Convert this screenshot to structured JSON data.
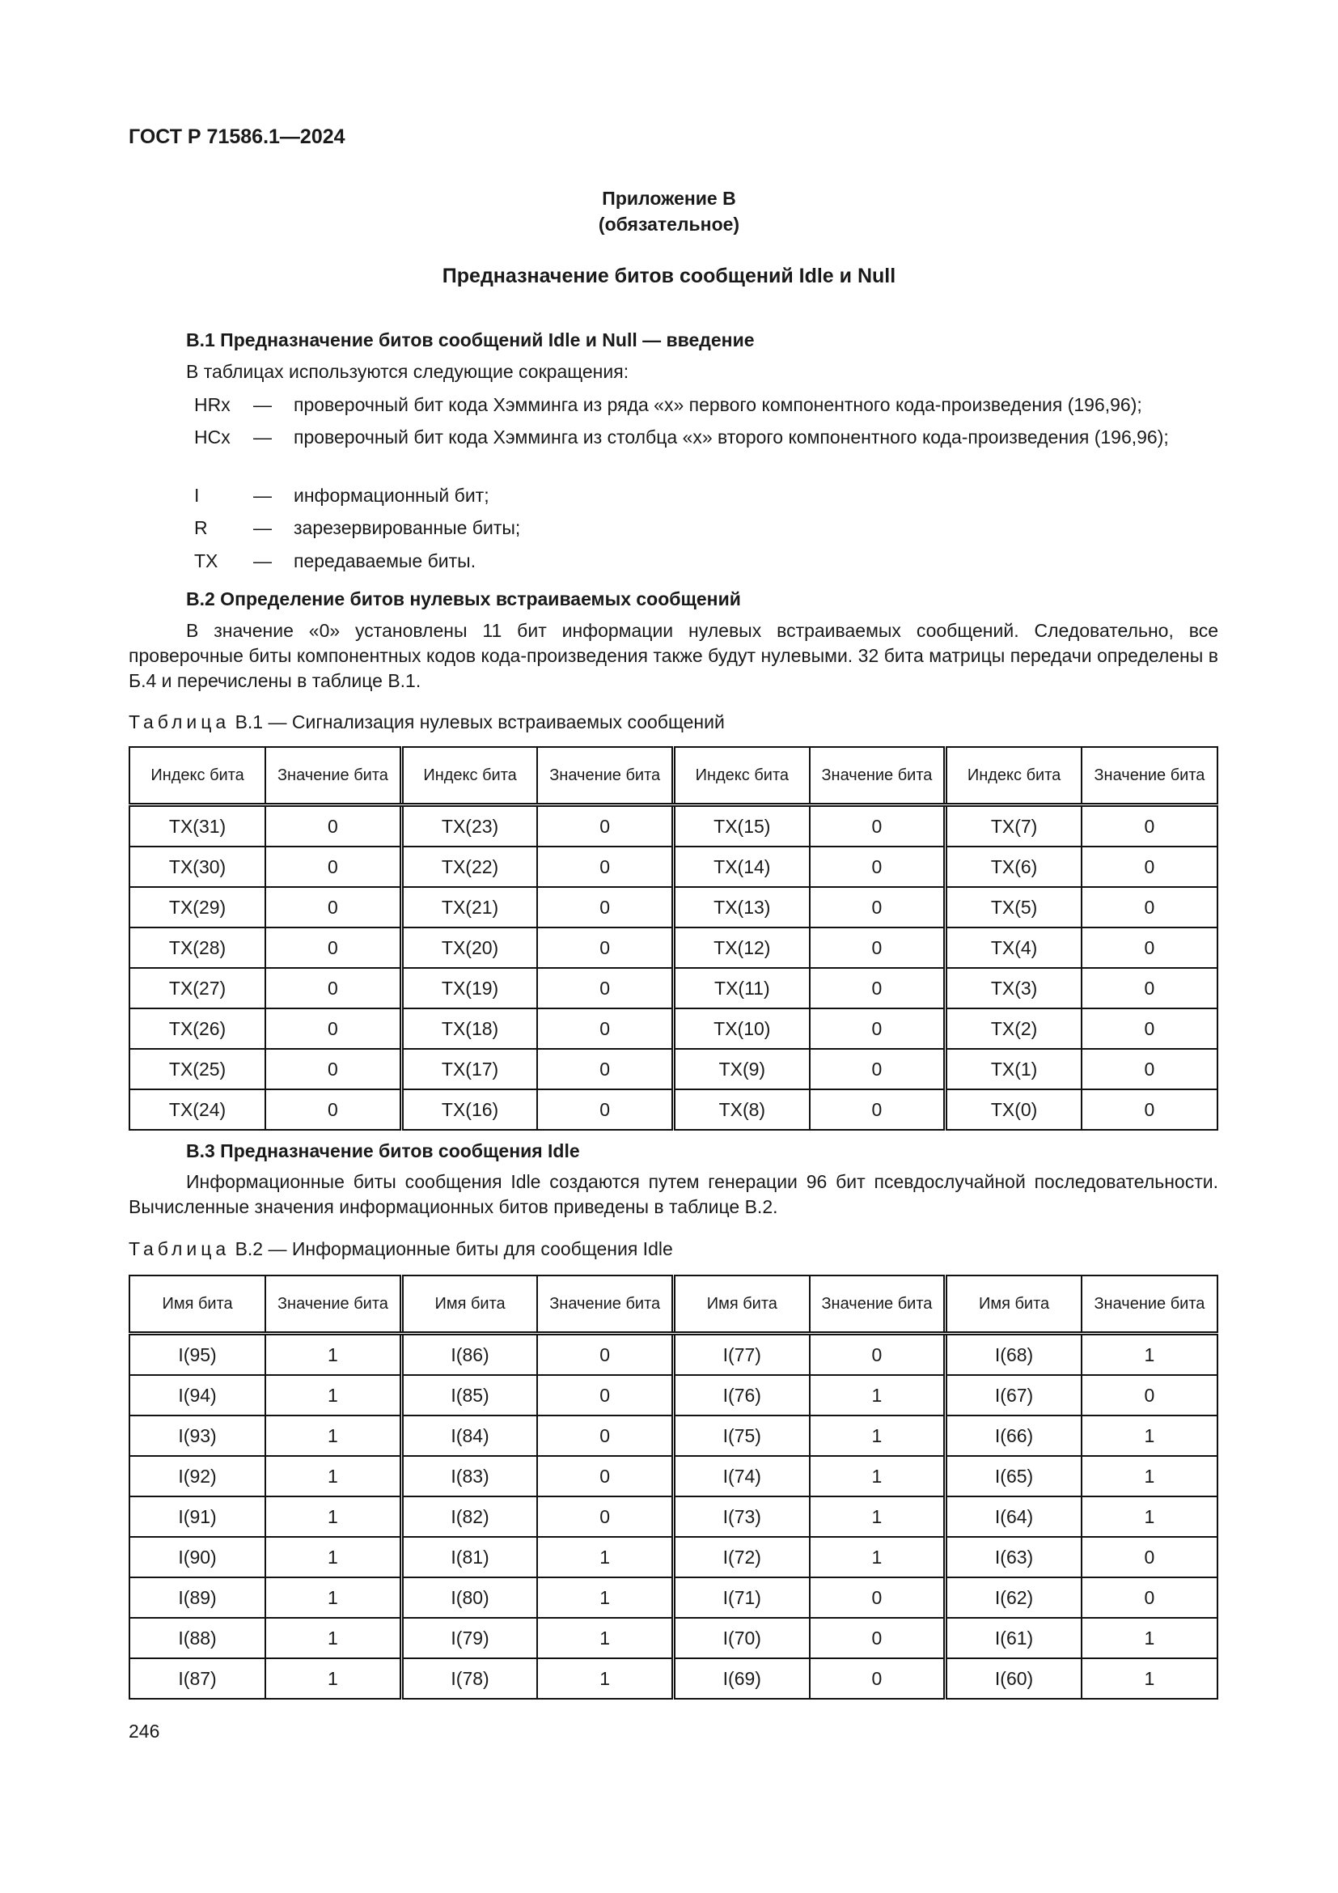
{
  "header": {
    "doc_id": "ГОСТ Р 71586.1—2024"
  },
  "appendix": {
    "label": "Приложение В",
    "status": "(обязательное)",
    "title": "Предназначение битов сообщений Idle и Null"
  },
  "b1": {
    "heading": "В.1 Предназначение битов сообщений Idle и Null — введение",
    "intro": "В таблицах используются следующие сокращения:",
    "abbreviations": [
      {
        "abbr": "HRx",
        "dash": "—",
        "def": "проверочный бит кода Хэмминга из ряда «x» первого компонентного кода-произведения (196,96);"
      },
      {
        "abbr": "HCx",
        "dash": "—",
        "def": "проверочный бит кода Хэмминга из столбца «x» второго компонентного кода-произведения (196,96);"
      },
      {
        "abbr": "I",
        "dash": "—",
        "def": "информационный бит;"
      },
      {
        "abbr": "R",
        "dash": "—",
        "def": "зарезервированные биты;"
      },
      {
        "abbr": "TX",
        "dash": "—",
        "def": "передаваемые биты."
      }
    ]
  },
  "b2": {
    "heading": "В.2 Определение битов нулевых встраиваемых сообщений",
    "paragraph": "В значение «0» установлены 11 бит информации нулевых встраиваемых сообщений. Следовательно, все проверочные биты компонентных кодов кода-произведения также будут нулевыми. 32 бита матрицы передачи определены в Б.4 и перечислены в таблице В.1.",
    "table_caption_word": "Таблица",
    "table_caption": "В.1 — Сигнализация нулевых встраиваемых сообщений",
    "table": {
      "headers": [
        "Индекс бита",
        "Значение бита",
        "Индекс бита",
        "Значение бита",
        "Индекс бита",
        "Значение бита",
        "Индекс бита",
        "Значение бита"
      ],
      "rows": [
        [
          "TX(31)",
          "0",
          "TX(23)",
          "0",
          "TX(15)",
          "0",
          "TX(7)",
          "0"
        ],
        [
          "TX(30)",
          "0",
          "TX(22)",
          "0",
          "TX(14)",
          "0",
          "TX(6)",
          "0"
        ],
        [
          "TX(29)",
          "0",
          "TX(21)",
          "0",
          "TX(13)",
          "0",
          "TX(5)",
          "0"
        ],
        [
          "TX(28)",
          "0",
          "TX(20)",
          "0",
          "TX(12)",
          "0",
          "TX(4)",
          "0"
        ],
        [
          "TX(27)",
          "0",
          "TX(19)",
          "0",
          "TX(11)",
          "0",
          "TX(3)",
          "0"
        ],
        [
          "TX(26)",
          "0",
          "TX(18)",
          "0",
          "TX(10)",
          "0",
          "TX(2)",
          "0"
        ],
        [
          "TX(25)",
          "0",
          "TX(17)",
          "0",
          "TX(9)",
          "0",
          "TX(1)",
          "0"
        ],
        [
          "TX(24)",
          "0",
          "TX(16)",
          "0",
          "TX(8)",
          "0",
          "TX(0)",
          "0"
        ]
      ]
    }
  },
  "b3": {
    "heading": "В.3 Предназначение битов сообщения Idle",
    "paragraph": "Информационные биты сообщения Idle создаются путем генерации 96 бит псевдослучайной последователь­ности. Вычисленные значения информационных битов приведены в таблице В.2.",
    "table_caption_word": "Таблица",
    "table_caption": "В.2 — Информационные биты для сообщения Idle",
    "table": {
      "headers": [
        "Имя бита",
        "Значение бита",
        "Имя бита",
        "Значение бита",
        "Имя бита",
        "Значение бита",
        "Имя бита",
        "Значение бита"
      ],
      "rows": [
        [
          "I(95)",
          "1",
          "I(86)",
          "0",
          "I(77)",
          "0",
          "I(68)",
          "1"
        ],
        [
          "I(94)",
          "1",
          "I(85)",
          "0",
          "I(76)",
          "1",
          "I(67)",
          "0"
        ],
        [
          "I(93)",
          "1",
          "I(84)",
          "0",
          "I(75)",
          "1",
          "I(66)",
          "1"
        ],
        [
          "I(92)",
          "1",
          "I(83)",
          "0",
          "I(74)",
          "1",
          "I(65)",
          "1"
        ],
        [
          "I(91)",
          "1",
          "I(82)",
          "0",
          "I(73)",
          "1",
          "I(64)",
          "1"
        ],
        [
          "I(90)",
          "1",
          "I(81)",
          "1",
          "I(72)",
          "1",
          "I(63)",
          "0"
        ],
        [
          "I(89)",
          "1",
          "I(80)",
          "1",
          "I(71)",
          "0",
          "I(62)",
          "0"
        ],
        [
          "I(88)",
          "1",
          "I(79)",
          "1",
          "I(70)",
          "0",
          "I(61)",
          "1"
        ],
        [
          "I(87)",
          "1",
          "I(78)",
          "1",
          "I(69)",
          "0",
          "I(60)",
          "1"
        ]
      ]
    }
  },
  "footer": {
    "page_number": "246"
  }
}
